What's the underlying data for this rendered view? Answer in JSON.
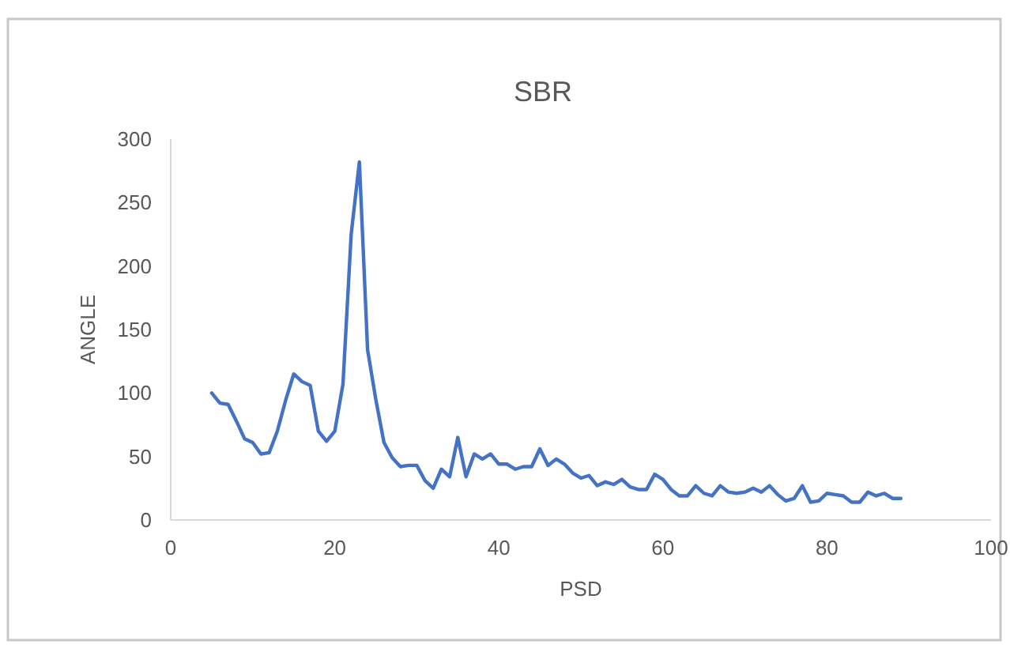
{
  "chart_data": {
    "type": "line",
    "title": "SBR",
    "xlabel": "PSD",
    "ylabel": "ANGLE",
    "x": [
      5,
      6,
      7,
      8,
      9,
      10,
      11,
      12,
      13,
      14,
      15,
      16,
      17,
      18,
      19,
      20,
      21,
      22,
      23,
      24,
      25,
      26,
      27,
      28,
      29,
      30,
      31,
      32,
      33,
      34,
      35,
      36,
      37,
      38,
      39,
      40,
      41,
      42,
      43,
      44,
      45,
      46,
      47,
      48,
      49,
      50,
      51,
      52,
      53,
      54,
      55,
      56,
      57,
      58,
      59,
      60,
      61,
      62,
      63,
      64,
      65,
      66,
      67,
      68,
      69,
      70,
      71,
      72,
      73,
      74,
      75,
      76,
      77,
      78,
      79,
      80,
      81,
      82,
      83,
      84,
      85,
      86,
      87,
      88,
      89
    ],
    "series": [
      {
        "color": "#4472c4",
        "values": [
          100,
          92,
          91,
          78,
          64,
          61,
          52,
          53,
          70,
          94,
          115,
          109,
          106,
          70,
          62,
          70,
          107,
          225,
          282,
          134,
          95,
          61,
          49,
          42,
          43,
          43,
          31,
          25,
          40,
          34,
          65,
          34,
          52,
          48,
          52,
          44,
          44,
          40,
          42,
          42,
          56,
          43,
          48,
          44,
          37,
          33,
          35,
          27,
          30,
          28,
          32,
          26,
          24,
          24,
          36,
          32,
          24,
          19,
          19,
          27,
          21,
          19,
          27,
          22,
          21,
          22,
          25,
          22,
          27,
          20,
          15,
          17,
          27,
          14,
          15,
          21,
          20,
          19,
          14,
          14,
          22,
          19,
          21,
          17,
          17
        ]
      }
    ],
    "xlim": [
      0,
      100
    ],
    "xticks": [
      0,
      20,
      40,
      60,
      80,
      100
    ],
    "ylim": [
      0,
      300
    ],
    "yticks": [
      0,
      50,
      100,
      150,
      200,
      250,
      300
    ],
    "grid": false,
    "marker": "none",
    "line_style": "solid"
  }
}
